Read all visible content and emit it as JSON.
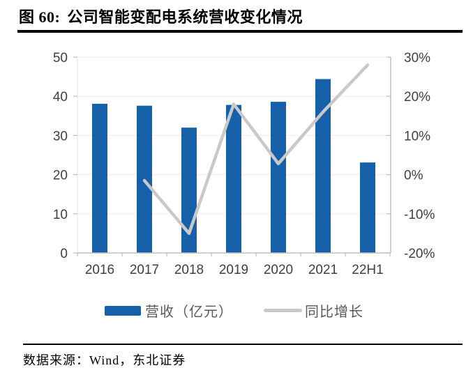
{
  "figure": {
    "label": "图 60:",
    "title": "公司智能变配电系统营收变化情况"
  },
  "source": {
    "prefix": "数据来源：",
    "text": "Wind，东北证券"
  },
  "legend": {
    "bar_label": "营收（亿元）",
    "line_label": "同比增长"
  },
  "colors": {
    "bar": "#1560A8",
    "line": "#C9C9C9",
    "grid": "#EDEDED",
    "axis": "#BFBFBF",
    "left_axis_line": "#E5E5E5",
    "tick_text": "#404040",
    "legend_text": "#595959"
  },
  "chart_data": {
    "type": "bar",
    "subtype": "bar+line combo",
    "title": "公司智能变配电系统营收变化情况",
    "categories": [
      "2016",
      "2017",
      "2018",
      "2019",
      "2020",
      "2021",
      "22H1"
    ],
    "series": [
      {
        "name": "营收（亿元）",
        "type": "bar",
        "axis": "left",
        "values": [
          38.1,
          37.6,
          32.0,
          37.8,
          38.6,
          44.4,
          23.1
        ]
      },
      {
        "name": "同比增长",
        "type": "line",
        "axis": "right",
        "values": [
          null,
          -1.5,
          -15,
          18,
          2.8,
          16,
          28
        ]
      }
    ],
    "left_axis": {
      "min": 0,
      "max": 50,
      "ticks": [
        0,
        10,
        20,
        30,
        40,
        50
      ],
      "labels": [
        "0",
        "10",
        "20",
        "30",
        "40",
        "50"
      ]
    },
    "right_axis": {
      "min": -20,
      "max": 30,
      "ticks": [
        -20,
        -10,
        0,
        10,
        20,
        30
      ],
      "labels": [
        "-20%",
        "-10%",
        "0%",
        "10%",
        "20%",
        "30%"
      ]
    },
    "grid": "horizontal",
    "legend_position": "bottom"
  }
}
